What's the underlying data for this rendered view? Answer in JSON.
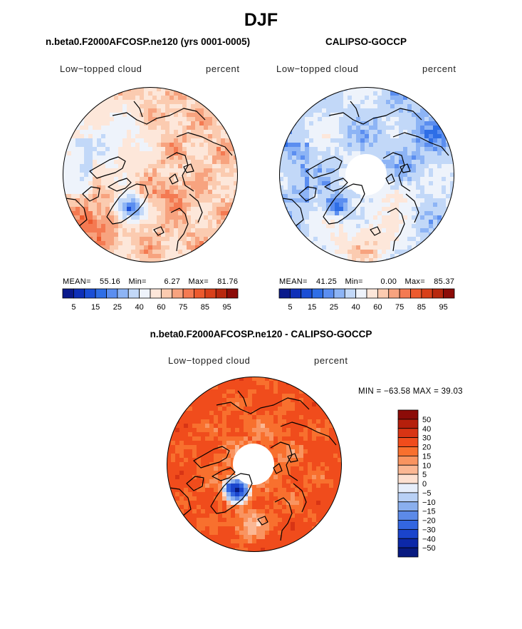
{
  "figure": {
    "title": "DJF",
    "panels": [
      {
        "title": "n.beta0.F2000AFCOSP.ne120 (yrs 0001-0005)",
        "left_label": "Low−topped cloud",
        "right_label": "percent",
        "stats": {
          "mean_label": "MEAN=",
          "mean": "55.16",
          "min_label": "Min=",
          "min": "6.27",
          "max_label": "Max=",
          "max": "81.76"
        }
      },
      {
        "title": "CALIPSO-GOCCP",
        "left_label": "Low−topped cloud",
        "right_label": "percent",
        "stats": {
          "mean_label": "MEAN=",
          "mean": "41.25",
          "min_label": "Min=",
          "min": "0.00",
          "max_label": "Max=",
          "max": "85.37"
        }
      },
      {
        "title": "n.beta0.F2000AFCOSP.ne120 - CALIPSO-GOCCP",
        "left_label": "Low−topped cloud",
        "right_label": "percent",
        "stats_text": "MIN = −63.58 MAX =   39.03"
      }
    ],
    "top_colorbar": {
      "tick_labels": [
        "5",
        "15",
        "25",
        "40",
        "60",
        "75",
        "85",
        "95"
      ],
      "colors": [
        "#0a1a8c",
        "#0e30b8",
        "#1a4ed6",
        "#2e6ee6",
        "#5b8ef0",
        "#8db4f5",
        "#c2d8f8",
        "#eef3fb",
        "#fde7da",
        "#fbcbb0",
        "#f7a37f",
        "#f47a52",
        "#ec5a2e",
        "#d8401a",
        "#b8280e",
        "#8c0c08"
      ]
    },
    "diff_colorbar": {
      "labels": [
        "50",
        "40",
        "30",
        "20",
        "15",
        "10",
        "5",
        "0",
        "−5",
        "−10",
        "−15",
        "−20",
        "−30",
        "−40",
        "−50"
      ],
      "colors": [
        "#8c0c08",
        "#b51f0c",
        "#d83414",
        "#f04c1c",
        "#f8702e",
        "#f99460",
        "#fbb793",
        "#fde0d0",
        "#e6eefb",
        "#b8d0f5",
        "#8aafee",
        "#5c8ae8",
        "#3366e0",
        "#1a44cc",
        "#0c28a8",
        "#081a80"
      ]
    }
  },
  "chart_data": {
    "type": "heatmap",
    "title": "DJF",
    "variable": "Low-topped cloud",
    "units": "percent",
    "projection": "north polar stereographic",
    "panels": [
      {
        "name": "n.beta0.F2000AFCOSP.ne120 (yrs 0001-0005)",
        "mean": 55.16,
        "min": 6.27,
        "max": 81.76,
        "contour_levels": [
          5,
          10,
          15,
          20,
          25,
          30,
          40,
          50,
          60,
          65,
          70,
          75,
          80,
          85,
          90,
          95
        ]
      },
      {
        "name": "CALIPSO-GOCCP",
        "mean": 41.25,
        "min": 0.0,
        "max": 85.37,
        "contour_levels": [
          5,
          10,
          15,
          20,
          25,
          30,
          40,
          50,
          60,
          65,
          70,
          75,
          80,
          85,
          90,
          95
        ]
      },
      {
        "name": "n.beta0.F2000AFCOSP.ne120 - CALIPSO-GOCCP",
        "min": -63.58,
        "max": 39.03,
        "contour_levels": [
          -50,
          -40,
          -30,
          -20,
          -15,
          -10,
          -5,
          0,
          5,
          10,
          15,
          20,
          30,
          40,
          50
        ]
      }
    ]
  }
}
